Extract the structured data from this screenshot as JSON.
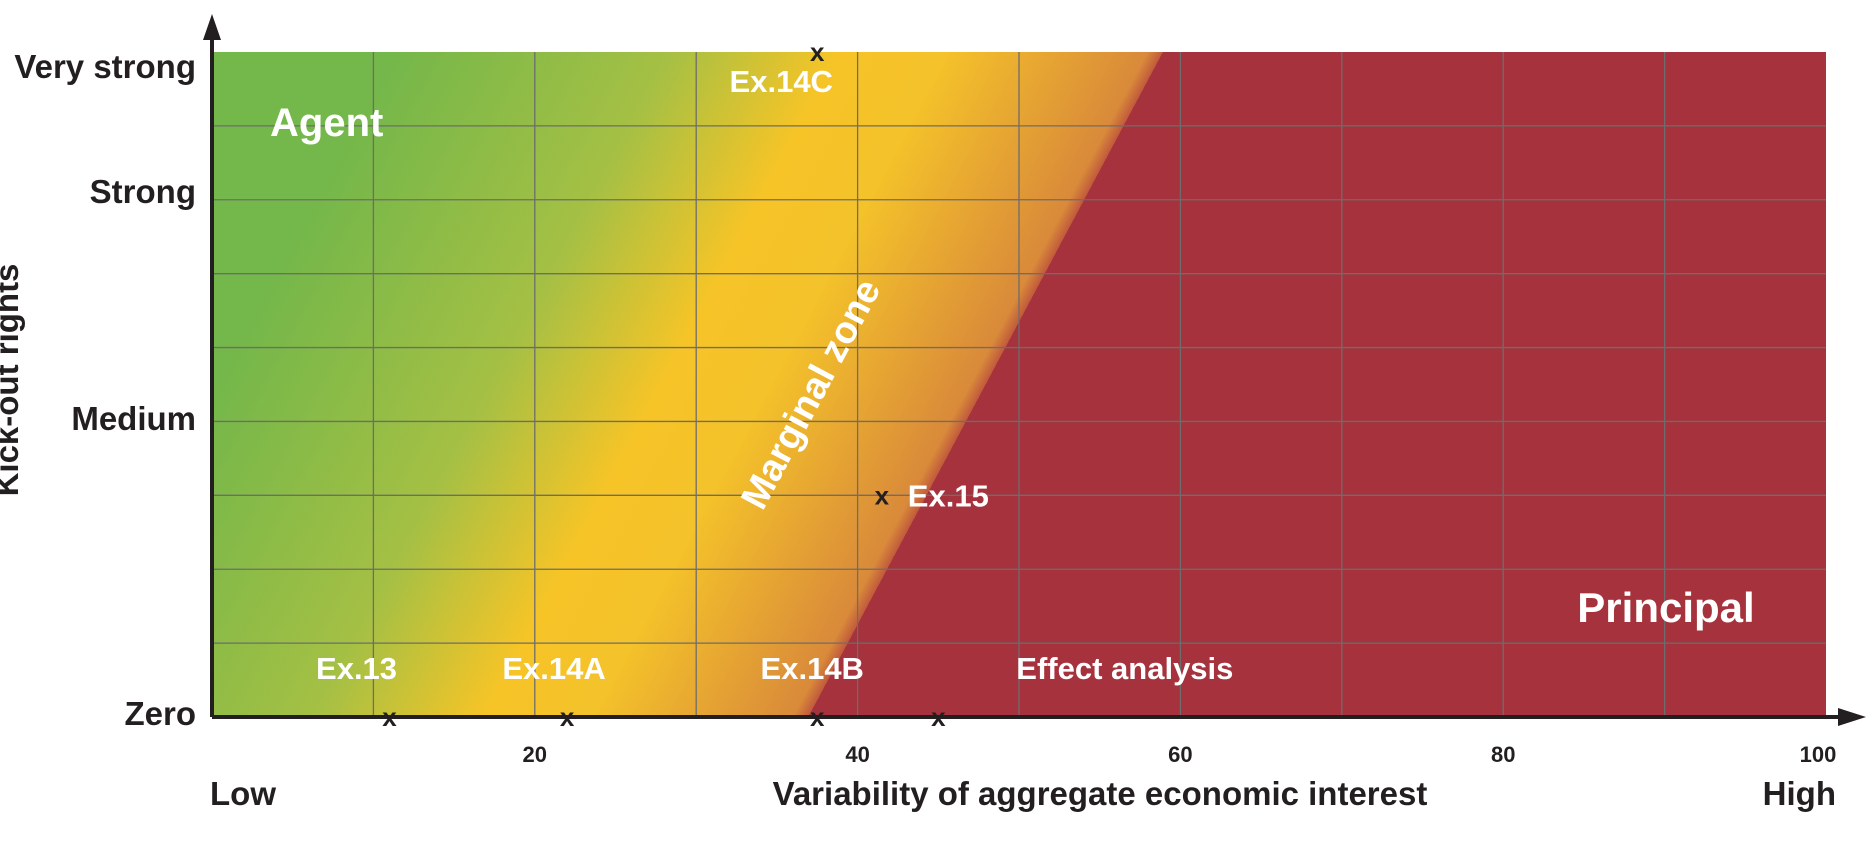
{
  "chart_data": {
    "type": "scatter",
    "title": "",
    "xlabel": "Variability of aggregate economic interest",
    "ylabel": "Kick-out rights",
    "x_low_label": "Low",
    "x_high_label": "High",
    "xlim": [
      0,
      100
    ],
    "x_ticks": [
      20,
      40,
      60,
      80,
      100
    ],
    "y_levels": [
      {
        "label": "Zero",
        "value": 0
      },
      {
        "label": "Medium",
        "value": 4.5
      },
      {
        "label": "Strong",
        "value": 7.6
      },
      {
        "label": "Very strong",
        "value": 8.4
      }
    ],
    "ylim": [
      0,
      9
    ],
    "grid": true,
    "zones": [
      {
        "name": "Agent",
        "x": 7,
        "y": 8.1
      },
      {
        "name": "Marginal zone",
        "x": 38,
        "y": 4.6
      },
      {
        "name": "Principal",
        "x": 90,
        "y": 1.5
      }
    ],
    "points": [
      {
        "label": "Ex.13",
        "x": 11,
        "y": 0
      },
      {
        "label": "Ex.14A",
        "x": 22,
        "y": 0
      },
      {
        "label": "Ex.14B",
        "x": 37.5,
        "y": 0
      },
      {
        "label": "Effect analysis",
        "x": 45,
        "y": 0
      },
      {
        "label": "Ex.14C",
        "x": 37.5,
        "y": 9
      },
      {
        "label": "Ex.15",
        "x": 41.5,
        "y": 3
      }
    ],
    "colors": {
      "green": "#74b74a",
      "yellow": "#f6c427",
      "orange": "#d98a3a",
      "red": "#a5323c",
      "axis": "#231f20",
      "grid": "#6d6d6d"
    }
  }
}
